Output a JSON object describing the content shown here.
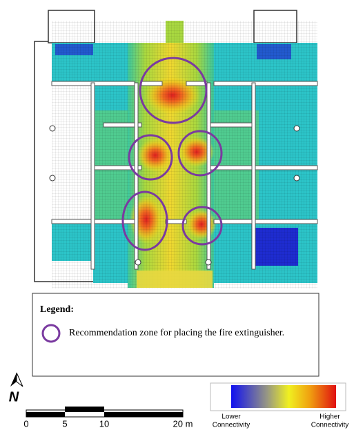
{
  "legend": {
    "title": "Legend:",
    "item": "Recommendation zone for placing the fire extinguisher."
  },
  "north": "N",
  "scale_bar": {
    "labels": [
      "0",
      "5",
      "10",
      "20 m"
    ]
  },
  "color_scale": {
    "low": [
      "Lower",
      "Connectivity"
    ],
    "high": [
      "Higher",
      "Connectivity"
    ]
  }
}
